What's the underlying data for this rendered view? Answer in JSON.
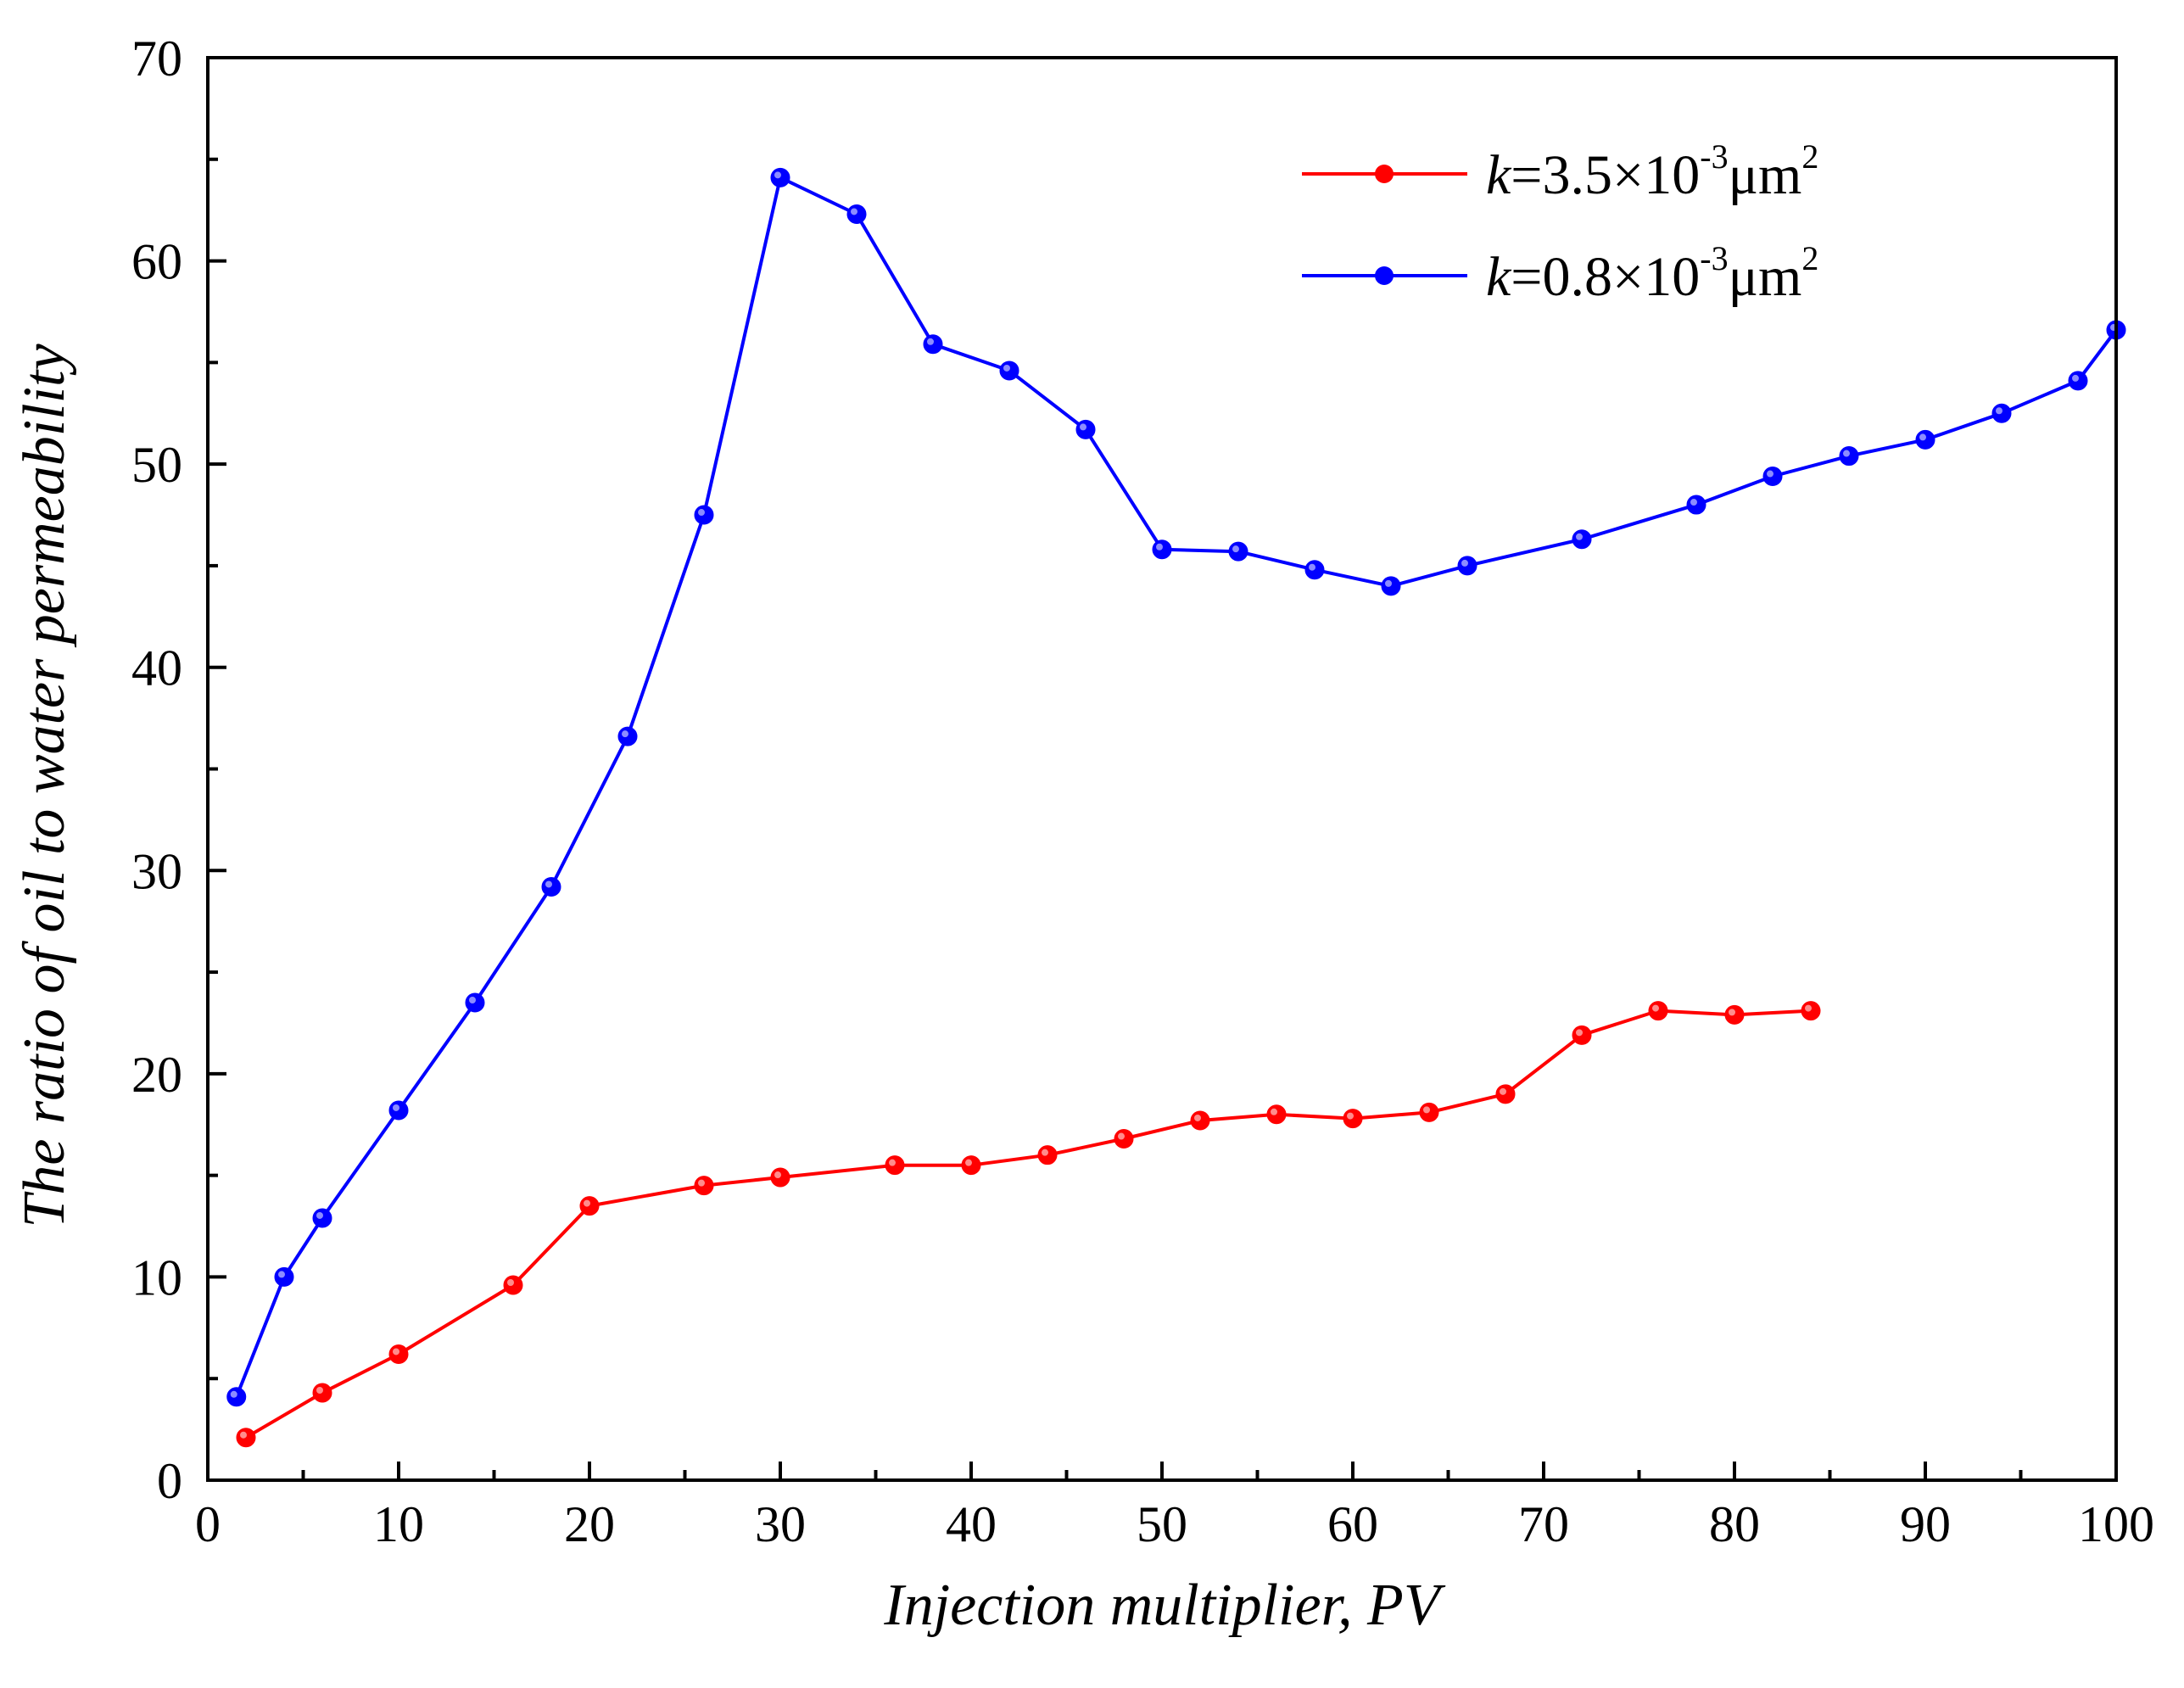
{
  "chart_data": {
    "type": "line",
    "title": "",
    "xlabel": "Injection multiplier, PV",
    "ylabel": "The ratio of oil to water permeability",
    "xlim": [
      0,
      100
    ],
    "ylim": [
      0,
      70
    ],
    "x_ticks": [
      0,
      10,
      20,
      30,
      40,
      50,
      60,
      70,
      80,
      90,
      100
    ],
    "y_ticks": [
      0,
      10,
      20,
      30,
      40,
      50,
      60,
      70
    ],
    "x_tick_labels": [
      "0",
      "10",
      "20",
      "30",
      "40",
      "50",
      "60",
      "70",
      "80",
      "90",
      "100"
    ],
    "y_tick_labels": [
      "0",
      "10",
      "20",
      "30",
      "40",
      "50",
      "60",
      "70"
    ],
    "grid": false,
    "legend_position": "top-right",
    "series": [
      {
        "name": "k=3.5×10-3μm2",
        "legend_k": "k",
        "legend_main": "=3.5×10",
        "legend_sup1": "-3",
        "legend_unit": "μm",
        "legend_sup2": "2",
        "color": "#ff0000",
        "x": [
          2,
          6,
          10,
          16,
          20,
          26,
          30,
          36,
          40,
          44,
          48,
          52,
          56,
          60,
          64,
          68,
          72,
          76,
          80,
          84
        ],
        "y": [
          2.1,
          4.3,
          6.2,
          9.6,
          13.5,
          14.5,
          14.9,
          15.5,
          15.5,
          16.0,
          16.8,
          17.7,
          18.0,
          17.8,
          18.1,
          19.0,
          21.9,
          23.1,
          22.9,
          23.1
        ]
      },
      {
        "name": "k=0.8×10-3μm2",
        "legend_k": "k",
        "legend_main": "=0.8×10",
        "legend_sup1": "-3",
        "legend_unit": "μm",
        "legend_sup2": "2",
        "color": "#0000ff",
        "x": [
          1.5,
          4,
          6,
          10,
          14,
          18,
          22,
          26,
          30,
          34,
          38,
          42,
          46,
          50,
          54,
          58,
          62,
          66,
          72,
          78,
          82,
          86,
          90,
          94,
          98,
          100
        ],
        "y": [
          4.1,
          10.0,
          12.9,
          18.2,
          23.5,
          29.2,
          36.6,
          47.5,
          64.1,
          62.3,
          55.9,
          54.6,
          51.7,
          45.8,
          45.7,
          44.8,
          44.0,
          45.0,
          46.3,
          48.0,
          49.4,
          50.4,
          51.2,
          52.5,
          54.1,
          56.6
        ]
      }
    ]
  }
}
